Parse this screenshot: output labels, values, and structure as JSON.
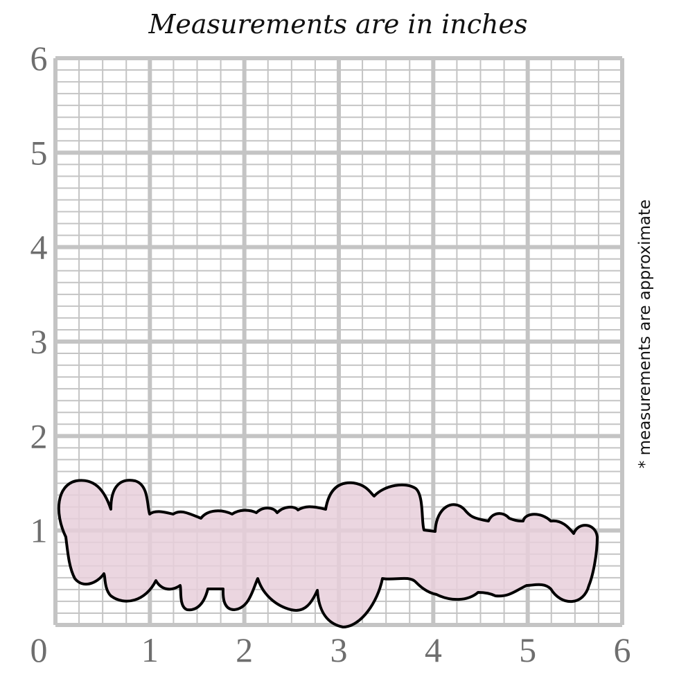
{
  "title": "Measurements are in inches",
  "note": "* measurements are approximate",
  "origin_label": 0,
  "x_labels": [
    1,
    2,
    3,
    4,
    5,
    6
  ],
  "y_labels": [
    1,
    2,
    3,
    4,
    5,
    6
  ]
}
